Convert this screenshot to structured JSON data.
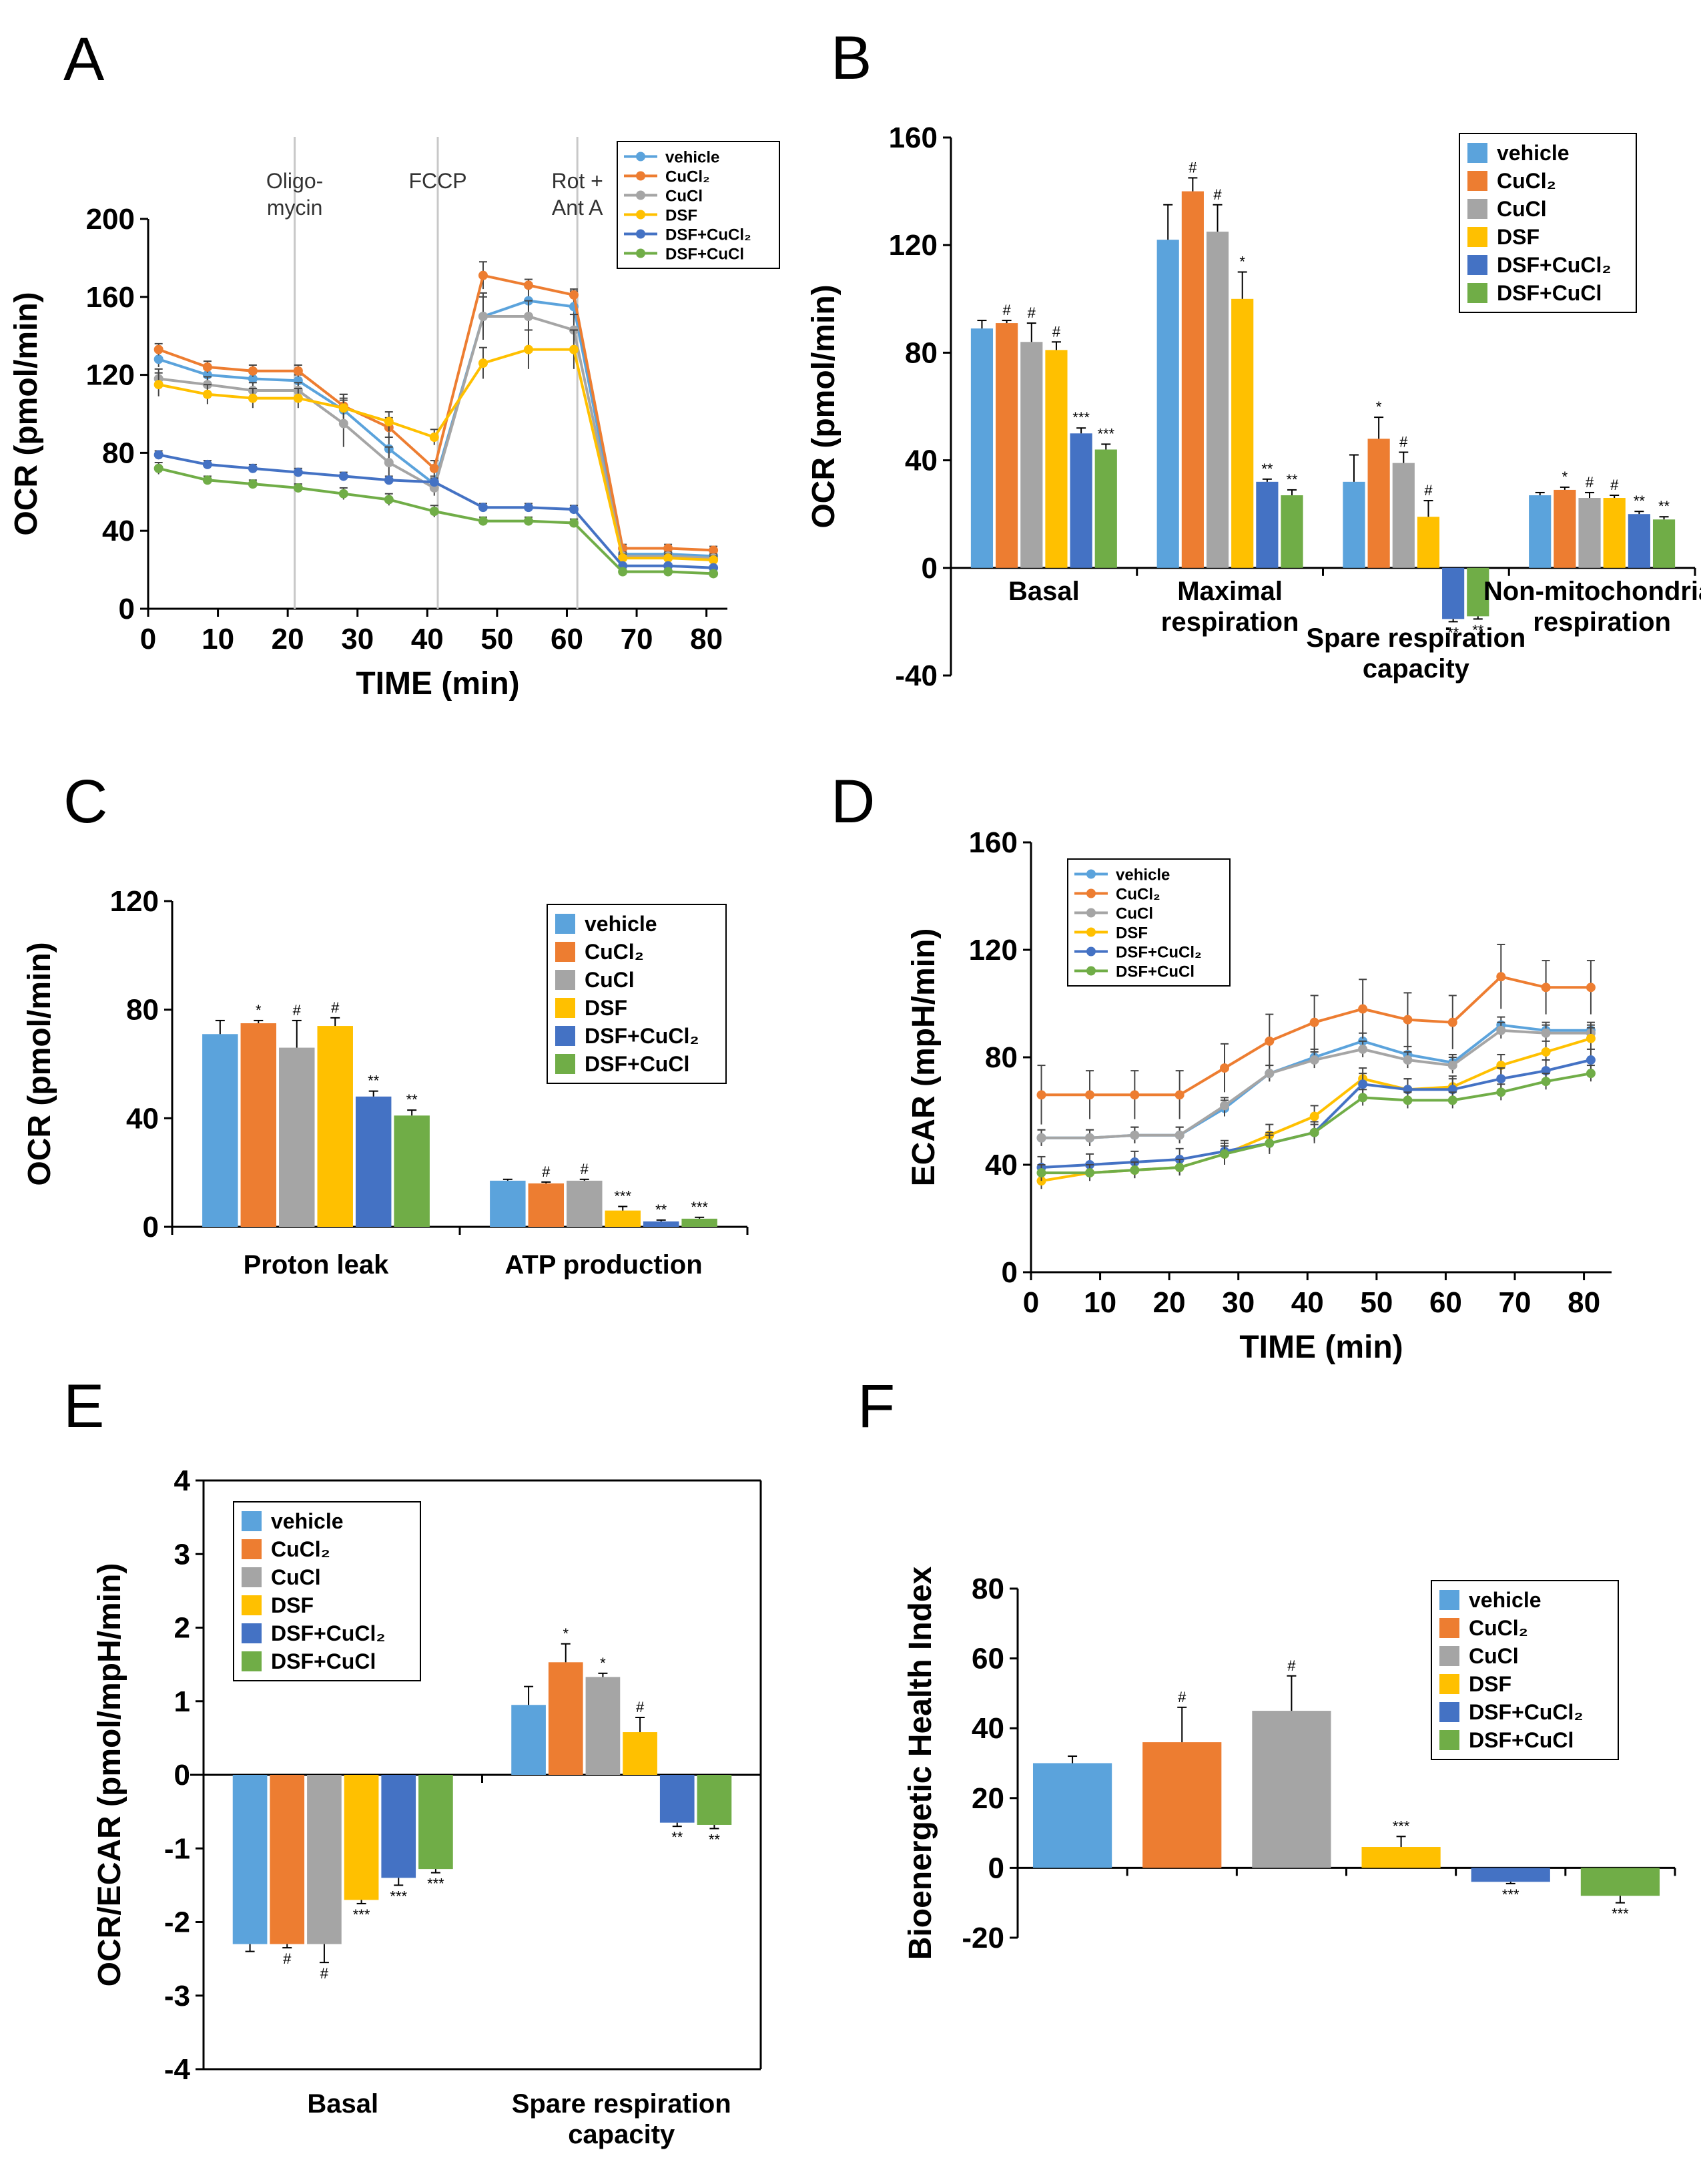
{
  "series_names": [
    "vehicle",
    "CuCl₂",
    "CuCl",
    "DSF",
    "DSF+CuCl₂",
    "DSF+CuCl"
  ],
  "colors": [
    "#5ba3dc",
    "#ed7d31",
    "#a5a5a5",
    "#ffc000",
    "#4472c4",
    "#70ad47"
  ],
  "chart_data": [
    {
      "id": "A",
      "label": "A",
      "type": "line",
      "title": "",
      "xlabel": "TIME (min)",
      "ylabel": "OCR (pmol/min)",
      "xlim": [
        0,
        83
      ],
      "ylim": [
        0,
        200
      ],
      "xticks": [
        0,
        10,
        20,
        30,
        40,
        50,
        60,
        70,
        80
      ],
      "yticks": [
        0,
        40,
        80,
        120,
        160,
        200
      ],
      "x": [
        1.5,
        8.5,
        15,
        21.5,
        28,
        34.5,
        41,
        48,
        54.5,
        61,
        68,
        74.5,
        81
      ],
      "events": [
        {
          "x": 21,
          "lines": [
            "Oligo-",
            "mycin"
          ]
        },
        {
          "x": 41.5,
          "lines": [
            "FCCP"
          ]
        },
        {
          "x": 61.5,
          "lines": [
            "Rot +",
            "Ant A"
          ]
        }
      ],
      "series": [
        {
          "name": "vehicle",
          "values": [
            128,
            120,
            118,
            117,
            102,
            82,
            64,
            150,
            158,
            155,
            28,
            28,
            27
          ],
          "errors": [
            4,
            3,
            3,
            3,
            8,
            6,
            4,
            12,
            9,
            8,
            2,
            2,
            2
          ]
        },
        {
          "name": "CuCl₂",
          "values": [
            133,
            124,
            122,
            122,
            104,
            93,
            72,
            171,
            166,
            161,
            31,
            31,
            30
          ],
          "errors": [
            3,
            3,
            3,
            3,
            6,
            5,
            4,
            7,
            3,
            3,
            2,
            2,
            2
          ]
        },
        {
          "name": "CuCl",
          "values": [
            118,
            115,
            112,
            112,
            95,
            75,
            62,
            150,
            150,
            143,
            27,
            27,
            26
          ],
          "errors": [
            5,
            4,
            4,
            4,
            12,
            8,
            4,
            10,
            8,
            8,
            2,
            2,
            2
          ]
        },
        {
          "name": "DSF",
          "values": [
            115,
            110,
            108,
            108,
            103,
            96,
            88,
            126,
            133,
            133,
            26,
            26,
            25
          ],
          "errors": [
            6,
            5,
            5,
            5,
            5,
            5,
            4,
            8,
            10,
            10,
            2,
            2,
            2
          ]
        },
        {
          "name": "DSF+CuCl₂",
          "values": [
            79,
            74,
            72,
            70,
            68,
            66,
            65,
            52,
            52,
            51,
            22,
            22,
            21
          ],
          "errors": [
            2,
            2,
            2,
            2,
            2,
            2,
            2,
            2,
            2,
            2,
            1,
            1,
            1
          ]
        },
        {
          "name": "DSF+CuCl",
          "values": [
            72,
            66,
            64,
            62,
            59,
            56,
            50,
            45,
            45,
            44,
            19,
            19,
            18
          ],
          "errors": [
            3,
            2,
            2,
            2,
            3,
            3,
            3,
            2,
            2,
            2,
            1,
            1,
            1
          ]
        }
      ]
    },
    {
      "id": "B",
      "label": "B",
      "type": "bar",
      "title": "",
      "xlabel": "",
      "ylabel": "OCR (pmol/min)",
      "ylim": [
        -40,
        160
      ],
      "yticks": [
        -40,
        0,
        40,
        80,
        120,
        160
      ],
      "categories": [
        [
          "Basal"
        ],
        [
          "Maximal",
          "respiration"
        ],
        [
          "Spare respiration",
          "capacity"
        ],
        [
          "Non-mitochondrial",
          "respiration"
        ]
      ],
      "series": [
        {
          "name": "vehicle",
          "values": [
            89,
            122,
            32,
            27
          ],
          "errors": [
            3,
            13,
            10,
            1
          ],
          "marks": [
            "",
            "",
            "",
            ""
          ]
        },
        {
          "name": "CuCl₂",
          "values": [
            91,
            140,
            48,
            29
          ],
          "errors": [
            1,
            5,
            8,
            1
          ],
          "marks": [
            "#",
            "#",
            "*",
            "*"
          ]
        },
        {
          "name": "CuCl",
          "values": [
            84,
            125,
            39,
            26
          ],
          "errors": [
            7,
            10,
            4,
            2
          ],
          "marks": [
            "#",
            "#",
            "#",
            "#"
          ]
        },
        {
          "name": "DSF",
          "values": [
            81,
            100,
            19,
            26
          ],
          "errors": [
            3,
            10,
            6,
            1
          ],
          "marks": [
            "#",
            "*",
            "#",
            "#"
          ]
        },
        {
          "name": "DSF+CuCl₂",
          "values": [
            50,
            32,
            -19,
            20
          ],
          "errors": [
            2,
            1,
            1,
            1
          ],
          "marks": [
            "***",
            "**",
            "**",
            "**"
          ]
        },
        {
          "name": "DSF+CuCl",
          "values": [
            44,
            27,
            -18,
            18
          ],
          "errors": [
            2,
            2,
            1,
            1
          ],
          "marks": [
            "***",
            "**",
            "**",
            "**"
          ]
        }
      ]
    },
    {
      "id": "C",
      "label": "C",
      "type": "bar",
      "title": "",
      "xlabel": "",
      "ylabel": "OCR (pmol/min)",
      "ylim": [
        0,
        120
      ],
      "yticks": [
        0,
        40,
        80,
        120
      ],
      "categories": [
        [
          "Proton leak"
        ],
        [
          "ATP production"
        ]
      ],
      "series": [
        {
          "name": "vehicle",
          "values": [
            71,
            17
          ],
          "errors": [
            5,
            0.5
          ],
          "marks": [
            "",
            ""
          ]
        },
        {
          "name": "CuCl₂",
          "values": [
            75,
            16
          ],
          "errors": [
            1,
            0.5
          ],
          "marks": [
            "*",
            "#"
          ]
        },
        {
          "name": "CuCl",
          "values": [
            66,
            17
          ],
          "errors": [
            10,
            0.5
          ],
          "marks": [
            "#",
            "#"
          ]
        },
        {
          "name": "DSF",
          "values": [
            74,
            6
          ],
          "errors": [
            3,
            1.5
          ],
          "marks": [
            "#",
            "***"
          ]
        },
        {
          "name": "DSF+CuCl₂",
          "values": [
            48,
            2
          ],
          "errors": [
            2,
            0.5
          ],
          "marks": [
            "**",
            "**"
          ]
        },
        {
          "name": "DSF+CuCl",
          "values": [
            41,
            3
          ],
          "errors": [
            2,
            0.5
          ],
          "marks": [
            "**",
            "***"
          ]
        }
      ]
    },
    {
      "id": "D",
      "label": "D",
      "type": "line",
      "title": "",
      "xlabel": "TIME (min)",
      "ylabel": "ECAR (mpH/min)",
      "xlim": [
        0,
        84
      ],
      "ylim": [
        0,
        160
      ],
      "xticks": [
        0,
        10,
        20,
        30,
        40,
        50,
        60,
        70,
        80
      ],
      "yticks": [
        0,
        40,
        80,
        120,
        160
      ],
      "x": [
        1.5,
        8.5,
        15,
        21.5,
        28,
        34.5,
        41,
        48,
        54.5,
        61,
        68,
        74.5,
        81
      ],
      "events": [],
      "series": [
        {
          "name": "vehicle",
          "values": [
            50,
            50,
            51,
            51,
            61,
            74,
            80,
            86,
            81,
            78,
            92,
            90,
            90
          ],
          "errors": [
            3,
            3,
            3,
            3,
            3,
            3,
            3,
            3,
            3,
            3,
            3,
            3,
            3
          ]
        },
        {
          "name": "CuCl₂",
          "values": [
            66,
            66,
            66,
            66,
            76,
            86,
            93,
            98,
            94,
            93,
            110,
            106,
            106
          ],
          "errors": [
            11,
            9,
            9,
            9,
            9,
            10,
            10,
            11,
            10,
            10,
            12,
            10,
            10
          ]
        },
        {
          "name": "CuCl",
          "values": [
            50,
            50,
            51,
            51,
            62,
            74,
            79,
            83,
            79,
            77,
            90,
            89,
            89
          ],
          "errors": [
            3,
            3,
            3,
            3,
            3,
            3,
            3,
            3,
            3,
            3,
            3,
            3,
            3
          ]
        },
        {
          "name": "DSF",
          "values": [
            34,
            37,
            38,
            39,
            44,
            51,
            58,
            72,
            68,
            69,
            77,
            82,
            87
          ],
          "errors": [
            3,
            3,
            3,
            3,
            4,
            4,
            4,
            4,
            4,
            4,
            4,
            4,
            4
          ]
        },
        {
          "name": "DSF+CuCl₂",
          "values": [
            39,
            40,
            41,
            42,
            45,
            48,
            52,
            70,
            68,
            68,
            72,
            75,
            79
          ],
          "errors": [
            4,
            4,
            4,
            4,
            4,
            4,
            4,
            4,
            4,
            4,
            4,
            4,
            4
          ]
        },
        {
          "name": "DSF+CuCl",
          "values": [
            37,
            37,
            38,
            39,
            44,
            48,
            52,
            65,
            64,
            64,
            67,
            71,
            74
          ],
          "errors": [
            3,
            3,
            3,
            3,
            3,
            3,
            3,
            3,
            3,
            3,
            3,
            3,
            3
          ]
        }
      ]
    },
    {
      "id": "E",
      "label": "E",
      "type": "bar",
      "title": "",
      "xlabel": "",
      "ylabel": "OCR/ECAR (pmol/mpH/min)",
      "ylim": [
        -4,
        4
      ],
      "yticks": [
        -4,
        -3,
        -2,
        -1,
        0,
        1,
        2,
        3,
        4
      ],
      "categories": [
        [
          "Basal"
        ],
        [
          "Spare respiration",
          "capacity"
        ]
      ],
      "series": [
        {
          "name": "vehicle",
          "values": [
            -2.3,
            0.95
          ],
          "errors": [
            0.1,
            0.25
          ],
          "marks": [
            "",
            ""
          ]
        },
        {
          "name": "CuCl₂",
          "values": [
            -2.3,
            1.53
          ],
          "errors": [
            0.05,
            0.25
          ],
          "marks": [
            "#",
            "*"
          ]
        },
        {
          "name": "CuCl",
          "values": [
            -2.3,
            1.33
          ],
          "errors": [
            0.25,
            0.05
          ],
          "marks": [
            "#",
            "*"
          ]
        },
        {
          "name": "DSF",
          "values": [
            -1.7,
            0.58
          ],
          "errors": [
            0.05,
            0.2
          ],
          "marks": [
            "***",
            "#"
          ]
        },
        {
          "name": "DSF+CuCl₂",
          "values": [
            -1.4,
            -0.65
          ],
          "errors": [
            0.1,
            0.05
          ],
          "marks": [
            "***",
            "**"
          ]
        },
        {
          "name": "DSF+CuCl",
          "values": [
            -1.28,
            -0.68
          ],
          "errors": [
            0.05,
            0.05
          ],
          "marks": [
            "***",
            "**"
          ]
        }
      ]
    },
    {
      "id": "F",
      "label": "F",
      "type": "bar",
      "title": "",
      "xlabel": "",
      "ylabel": "Bioenergetic Health Index",
      "ylim": [
        -20,
        80
      ],
      "yticks": [
        -20,
        0,
        20,
        40,
        60,
        80
      ],
      "categories": [
        "vehicle",
        "CuCl₂",
        "CuCl",
        "DSF",
        "DSF+CuCl₂",
        "DSF+CuCl"
      ],
      "values": [
        30,
        36,
        45,
        6,
        -4,
        -8
      ],
      "errors": [
        2,
        10,
        10,
        3,
        0.5,
        2
      ],
      "marks": [
        "",
        "#",
        "#",
        "***",
        "***",
        "***"
      ]
    }
  ]
}
